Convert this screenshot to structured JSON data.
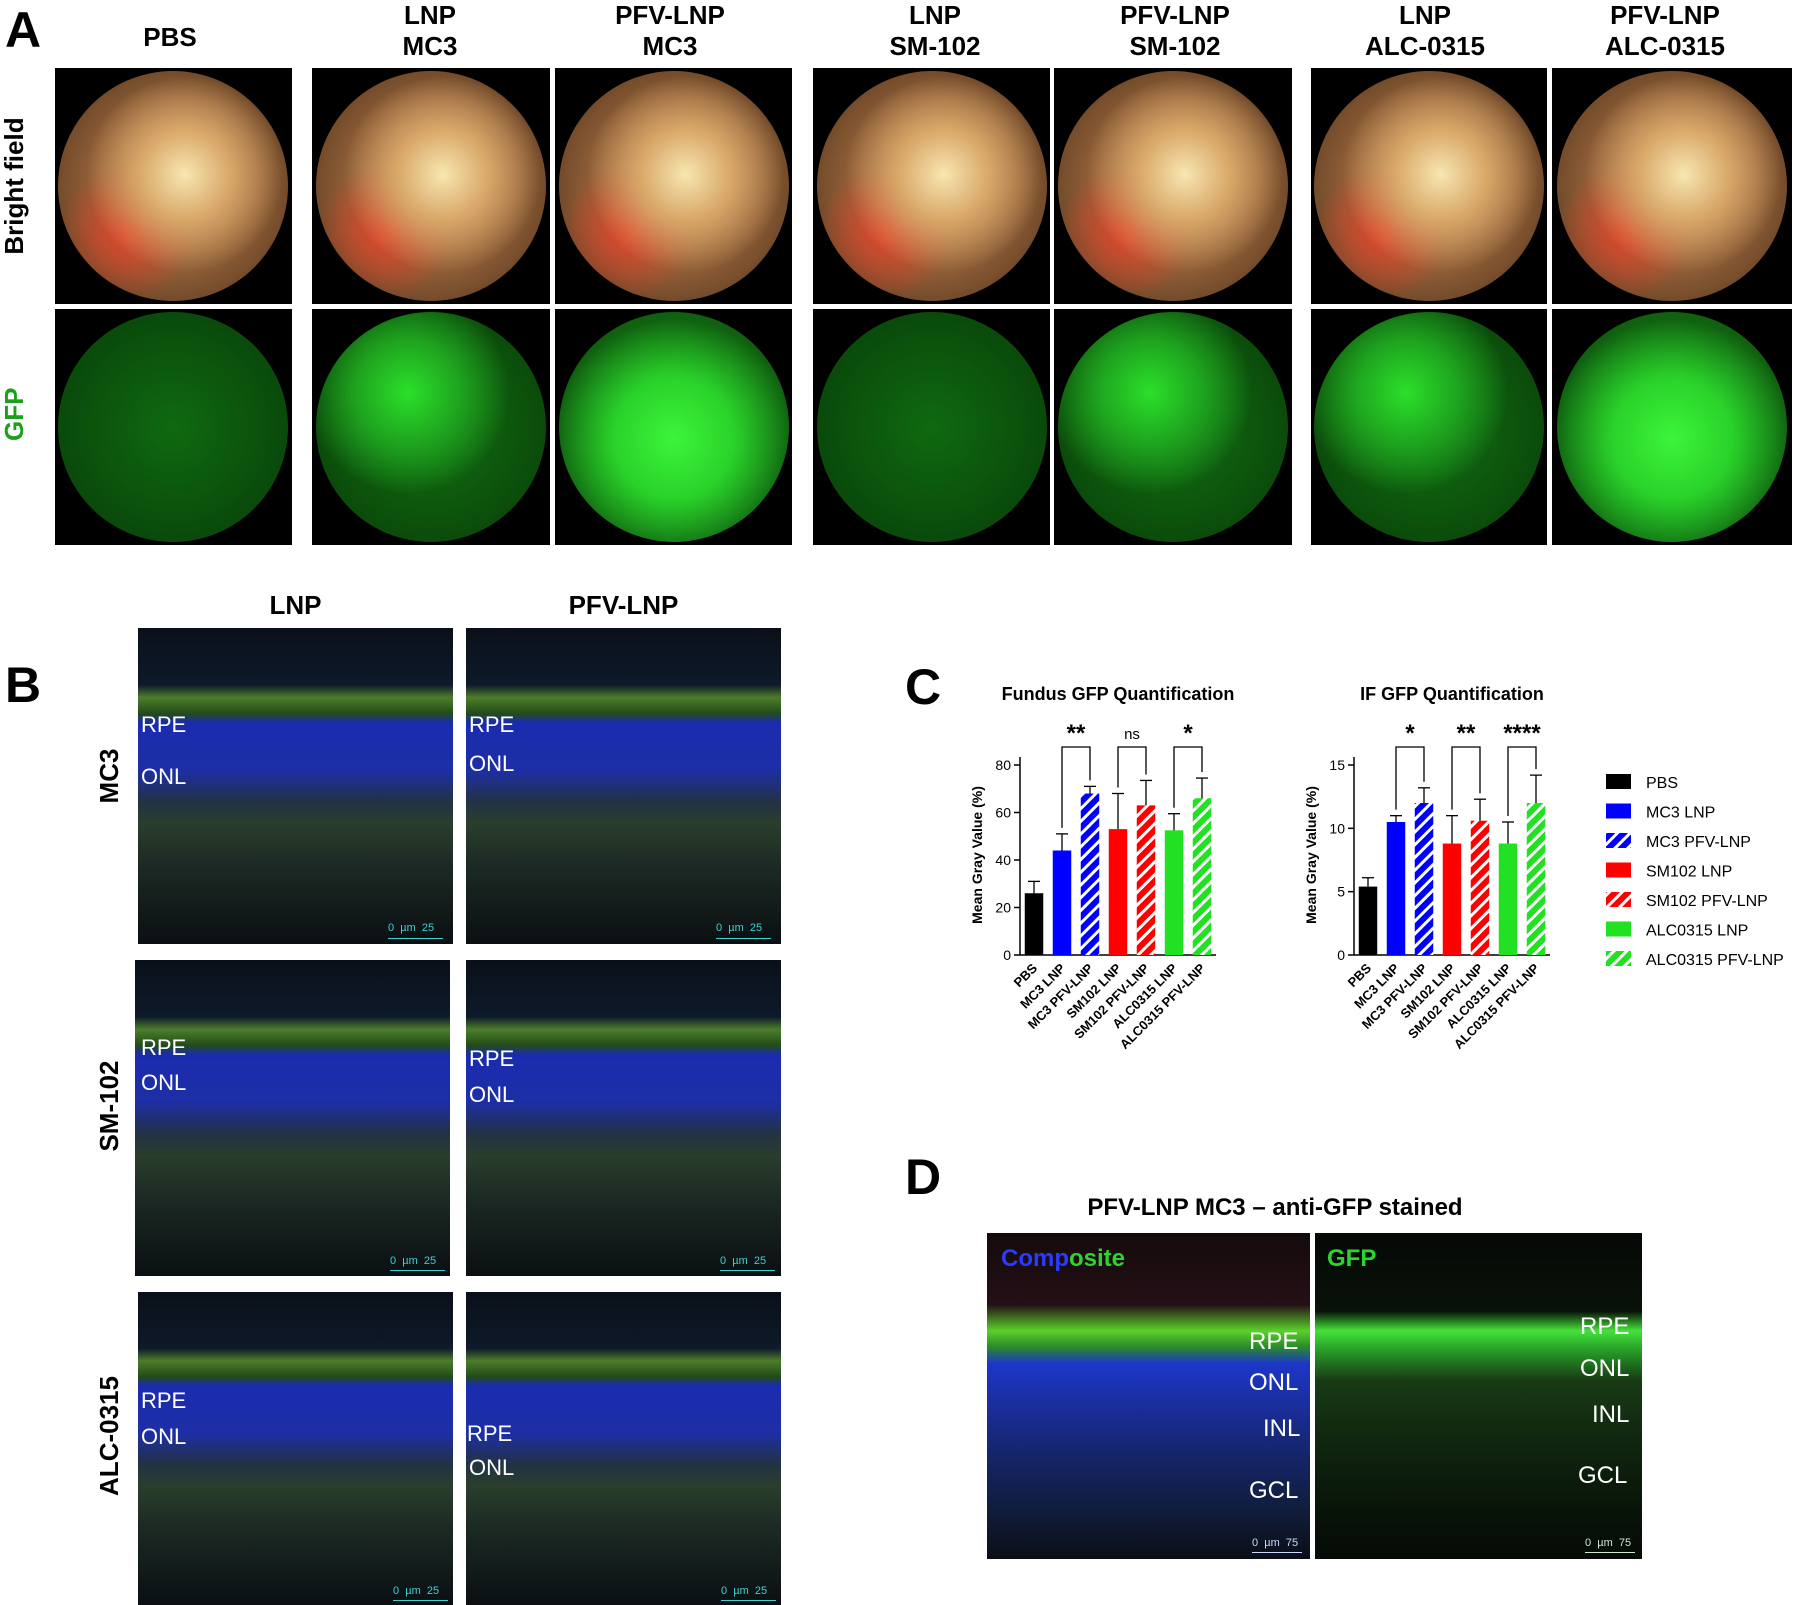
{
  "panel_a": {
    "letter": "A",
    "columns": [
      {
        "line1": "PBS",
        "line2": ""
      },
      {
        "line1": "LNP",
        "line2": "MC3"
      },
      {
        "line1": "PFV-LNP",
        "line2": "MC3"
      },
      {
        "line1": "LNP",
        "line2": "SM-102"
      },
      {
        "line1": "PFV-LNP",
        "line2": "SM-102"
      },
      {
        "line1": "LNP",
        "line2": "ALC-0315"
      },
      {
        "line1": "PFV-LNP",
        "line2": "ALC-0315"
      }
    ],
    "rows": {
      "bright": "Bright field",
      "gfp": "GFP"
    },
    "gfp_color": "#1aa01a"
  },
  "panel_b": {
    "letter": "B",
    "columns": [
      "LNP",
      "PFV-LNP"
    ],
    "rows": [
      "MC3",
      "SM-102",
      "ALC-0315"
    ],
    "labels": {
      "rpe": "RPE",
      "onl": "ONL"
    },
    "scale": {
      "left": "0",
      "unit": "µm",
      "right": "25"
    }
  },
  "panel_c": {
    "letter": "C",
    "legend": [
      {
        "label": "PBS",
        "color": "#000000",
        "hatch": false
      },
      {
        "label": "MC3 LNP",
        "color": "#0000ff",
        "hatch": false
      },
      {
        "label": "MC3 PFV-LNP",
        "color": "#0000ff",
        "hatch": true
      },
      {
        "label": "SM102 LNP",
        "color": "#ff0000",
        "hatch": false
      },
      {
        "label": "SM102 PFV-LNP",
        "color": "#ff0000",
        "hatch": true
      },
      {
        "label": "ALC0315 LNP",
        "color": "#22e022",
        "hatch": false
      },
      {
        "label": "ALC0315 PFV-LNP",
        "color": "#22e022",
        "hatch": true
      }
    ]
  },
  "chart_data": [
    {
      "type": "bar",
      "title": "Fundus GFP Quantification",
      "xlabel": "",
      "ylabel": "Mean Gray Value (%)",
      "ylim": [
        0,
        80
      ],
      "yticks": [
        0,
        20,
        40,
        60,
        80
      ],
      "categories": [
        "PBS",
        "MC3 LNP",
        "MC3 PFV-LNP",
        "SM102 LNP",
        "SM102 PFV-LNP",
        "ALC0315 LNP",
        "ALC0315 PFV-LNP"
      ],
      "values": [
        26,
        44,
        68,
        53,
        63,
        52.5,
        66
      ],
      "errors": [
        5,
        7,
        3,
        15,
        10.5,
        7,
        8.5
      ],
      "significance": [
        {
          "pair": [
            1,
            2
          ],
          "label": "**"
        },
        {
          "pair": [
            3,
            4
          ],
          "label": "ns"
        },
        {
          "pair": [
            5,
            6
          ],
          "label": "*"
        }
      ]
    },
    {
      "type": "bar",
      "title": "IF GFP Quantification",
      "xlabel": "",
      "ylabel": "Mean Gray Value (%)",
      "ylim": [
        0,
        15
      ],
      "yticks": [
        0,
        5,
        10,
        15
      ],
      "categories": [
        "PBS",
        "MC3 LNP",
        "MC3 PFV-LNP",
        "SM102 LNP",
        "SM102 PFV-LNP",
        "ALC0315 LNP",
        "ALC0315 PFV-LNP"
      ],
      "values": [
        5.4,
        10.5,
        12,
        8.8,
        10.6,
        8.8,
        12
      ],
      "errors": [
        0.7,
        0.5,
        1.2,
        2.2,
        1.7,
        1.7,
        2.2
      ],
      "significance": [
        {
          "pair": [
            1,
            2
          ],
          "label": "*"
        },
        {
          "pair": [
            3,
            4
          ],
          "label": "**"
        },
        {
          "pair": [
            5,
            6
          ],
          "label": "****"
        }
      ]
    }
  ],
  "panel_d": {
    "letter": "D",
    "title": "PFV-LNP MC3 – anti-GFP stained",
    "composite_a": "Comp",
    "composite_b": "osite",
    "gfp_label": "GFP",
    "labels": {
      "rpe": "RPE",
      "onl": "ONL",
      "inl": "INL",
      "gcl": "GCL"
    },
    "scale": {
      "left": "0",
      "unit": "µm",
      "right": "75"
    }
  }
}
